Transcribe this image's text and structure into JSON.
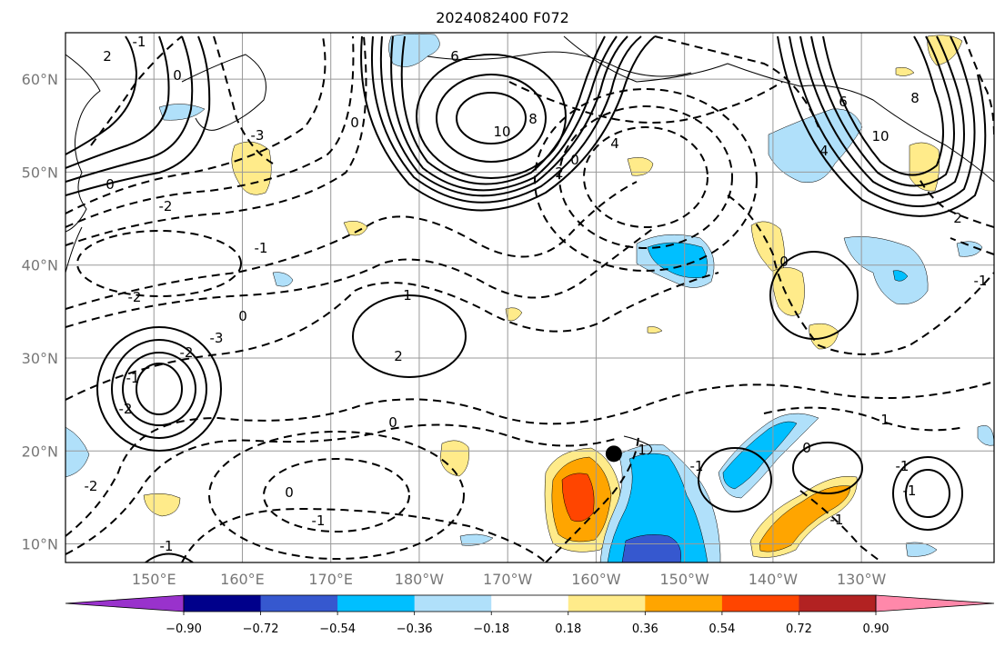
{
  "title": "2024082400 F072",
  "map": {
    "lon_range": [
      140,
      245
    ],
    "lat_range": [
      8,
      65
    ],
    "lon_ticks": [
      "150°E",
      "160°E",
      "170°E",
      "180°W",
      "170°W",
      "160°W",
      "150°W",
      "140°W",
      "130°W"
    ],
    "lat_ticks": [
      "60°N",
      "50°N",
      "40°N",
      "30°N",
      "20°N",
      "10°N"
    ],
    "grid": true,
    "marker": {
      "name": "black-dot",
      "lon": 202,
      "lat": 19.7
    },
    "contour_labels": [
      "0",
      "2",
      "-1",
      "0",
      "6",
      "10",
      "8",
      "4",
      "2",
      "0",
      "-3",
      "-2",
      "-1",
      "-2",
      "0",
      "-3",
      "0",
      "1",
      "2",
      "-2",
      "-1",
      "-2",
      "0",
      "-1",
      "0",
      "-2",
      "-1",
      "1",
      "-1",
      "0",
      "1",
      "-1",
      "-1",
      "-1",
      "2",
      "4",
      "6",
      "8",
      "10",
      "-1",
      "0"
    ]
  },
  "colorbar": {
    "colors": [
      "#9932cc",
      "#00008b",
      "#3658cf",
      "#00bfff",
      "#b0e0fa",
      "#ffffff",
      "#ffeb8a",
      "#ffa500",
      "#ff4500",
      "#b22222",
      "#ff88aa"
    ],
    "tick_labels": [
      "−0.90",
      "−0.72",
      "−0.54",
      "−0.36",
      "−0.18",
      "0.18",
      "0.36",
      "0.54",
      "0.72",
      "0.90"
    ]
  },
  "colors": {
    "light_blue": "#b0e0fa",
    "blue": "#00bfff",
    "dark_blue": "#3658cf",
    "yellow": "#ffeb8a",
    "orange": "#ffa500",
    "red_orange": "#ff4500"
  }
}
